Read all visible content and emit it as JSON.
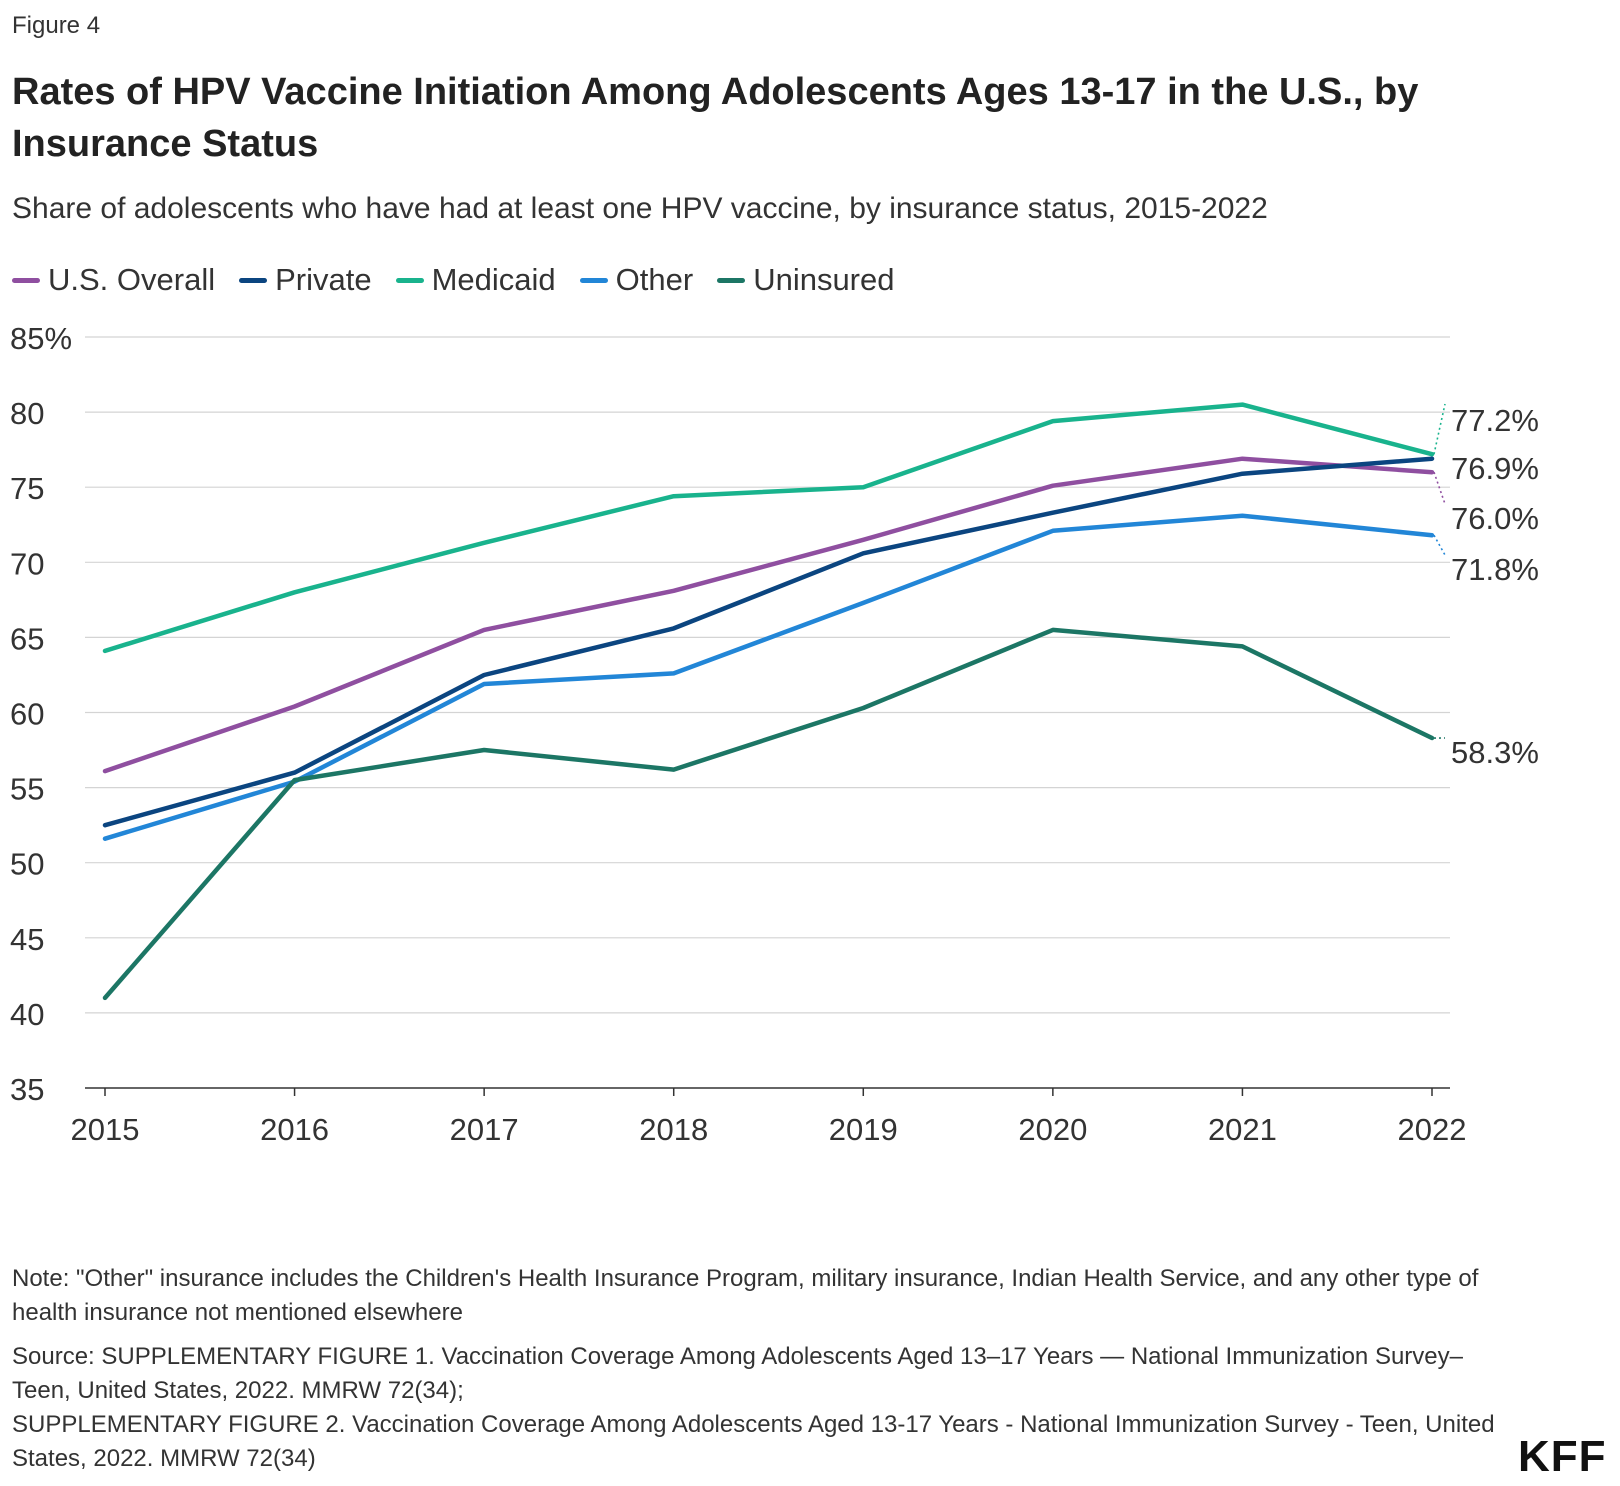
{
  "figure_label": "Figure 4",
  "title": "Rates of HPV Vaccine Initiation Among Adolescents Ages 13-17 in the U.S., by Insurance Status",
  "subtitle": "Share of adolescents who have had at least one HPV vaccine, by insurance status, 2015-2022",
  "colors": {
    "us_overall": "#8f4fa0",
    "private": "#0b4580",
    "medicaid": "#19b38d",
    "other": "#2286d7",
    "uninsured": "#1c7665",
    "grid": "#d4d4d4",
    "axis": "#333333"
  },
  "chart_data": {
    "type": "line",
    "title": "Rates of HPV Vaccine Initiation Among Adolescents Ages 13-17 in the U.S., by Insurance Status",
    "xlabel": "",
    "ylabel": "",
    "x": [
      "2015",
      "2016",
      "2017",
      "2018",
      "2019",
      "2020",
      "2021",
      "2022"
    ],
    "ylim": [
      35,
      85
    ],
    "yticks": [
      35,
      40,
      45,
      50,
      55,
      60,
      65,
      70,
      75,
      80,
      85
    ],
    "ytick_labels": [
      "35",
      "40",
      "45",
      "50",
      "55",
      "60",
      "65",
      "70",
      "75",
      "80",
      "85%"
    ],
    "grid": true,
    "legend_position": "top-left",
    "series": [
      {
        "key": "us_overall",
        "name": "U.S. Overall",
        "values": [
          56.1,
          60.4,
          65.5,
          68.1,
          71.5,
          75.1,
          76.9,
          76.0
        ],
        "end_label": "76.0%"
      },
      {
        "key": "private",
        "name": "Private",
        "values": [
          52.5,
          56.0,
          62.5,
          65.6,
          70.6,
          73.3,
          75.9,
          76.9
        ],
        "end_label": "76.9%"
      },
      {
        "key": "medicaid",
        "name": "Medicaid",
        "values": [
          64.1,
          68.0,
          71.3,
          74.4,
          75.0,
          79.4,
          80.5,
          77.2
        ],
        "end_label": "77.2%"
      },
      {
        "key": "other",
        "name": "Other",
        "values": [
          51.6,
          55.4,
          61.9,
          62.6,
          67.3,
          72.1,
          73.1,
          71.8
        ],
        "end_label": "71.8%"
      },
      {
        "key": "uninsured",
        "name": "Uninsured",
        "values": [
          41.0,
          55.5,
          57.5,
          56.2,
          60.3,
          65.5,
          64.4,
          58.3
        ],
        "end_label": "58.3%"
      }
    ]
  },
  "notes": {
    "note": "Note: \"Other\" insurance includes the Children's Health Insurance Program, military insurance, Indian Health Service, and any other type of health insurance not mentioned elsewhere",
    "source_1": "Source: SUPPLEMENTARY FIGURE 1. Vaccination Coverage Among Adolescents Aged 13–17 Years — National Immunization Survey–Teen, United States, 2022. MMRW 72(34);",
    "source_2": "SUPPLEMENTARY FIGURE 2. Vaccination Coverage Among Adolescents Aged 13-17 Years - National Immunization Survey - Teen, United States, 2022. MMRW 72(34)"
  },
  "logo_text": "KFF"
}
